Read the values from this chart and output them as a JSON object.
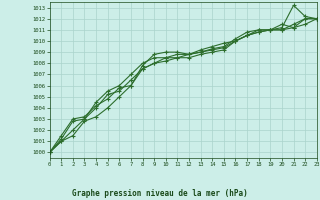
{
  "title": "Graphe pression niveau de la mer (hPa)",
  "background_color": "#cceee8",
  "grid_color": "#aad4cc",
  "line_color": "#2d6e2d",
  "text_color": "#1a4a1a",
  "xlim": [
    0,
    23
  ],
  "ylim": [
    999.5,
    1013.5
  ],
  "yticks": [
    1000,
    1001,
    1002,
    1003,
    1004,
    1005,
    1006,
    1007,
    1008,
    1009,
    1010,
    1011,
    1012,
    1013
  ],
  "xticks": [
    0,
    1,
    2,
    3,
    4,
    5,
    6,
    7,
    8,
    9,
    10,
    11,
    12,
    13,
    14,
    15,
    16,
    17,
    18,
    19,
    20,
    21,
    22,
    23
  ],
  "line1": [
    1000.0,
    1001.0,
    1001.5,
    1002.8,
    1003.2,
    1004.0,
    1005.0,
    1006.0,
    1007.8,
    1008.8,
    1009.0,
    1009.0,
    1008.8,
    1009.2,
    1009.5,
    1009.8,
    1010.0,
    1010.5,
    1011.0,
    1011.0,
    1011.2,
    1013.2,
    1012.2,
    1012.0
  ],
  "line2": [
    1000.0,
    1001.5,
    1003.0,
    1003.2,
    1004.2,
    1004.8,
    1005.8,
    1006.0,
    1007.5,
    1008.0,
    1008.2,
    1008.5,
    1008.8,
    1009.0,
    1009.3,
    1009.5,
    1010.2,
    1010.8,
    1011.0,
    1011.0,
    1011.0,
    1011.5,
    1012.0,
    1012.0
  ],
  "line3": [
    1000.0,
    1001.0,
    1002.0,
    1003.0,
    1004.0,
    1005.2,
    1005.5,
    1006.5,
    1007.5,
    1008.0,
    1008.5,
    1008.8,
    1008.8,
    1009.0,
    1009.2,
    1009.4,
    1010.0,
    1010.5,
    1010.8,
    1011.0,
    1011.0,
    1011.2,
    1012.0,
    1012.0
  ],
  "line4": [
    1000.0,
    1001.2,
    1002.8,
    1003.0,
    1004.5,
    1005.5,
    1006.0,
    1007.0,
    1008.0,
    1008.5,
    1008.5,
    1008.5,
    1008.5,
    1008.8,
    1009.0,
    1009.2,
    1010.0,
    1010.5,
    1010.8,
    1011.0,
    1011.5,
    1011.2,
    1011.5,
    1012.0
  ]
}
